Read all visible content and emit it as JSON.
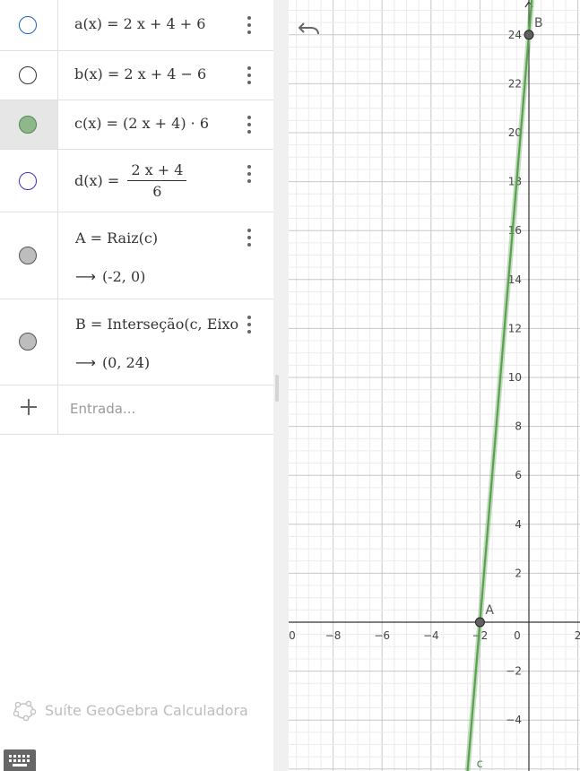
{
  "algebra": {
    "items": [
      {
        "id": "a",
        "expr": "a(x)  =  2 x + 4 + 6",
        "marble": {
          "fill": "#ffffff",
          "border": "#1565c0"
        }
      },
      {
        "id": "b",
        "expr": "b(x)  =  2 x + 4 − 6",
        "marble": {
          "fill": "#ffffff",
          "border": "#333333"
        }
      },
      {
        "id": "c",
        "expr": "c(x)  =  (2 x + 4) · 6",
        "marble": {
          "fill": "#8fb88a",
          "border": "#4e8a48"
        }
      },
      {
        "id": "d",
        "lhs": "d(x)  =",
        "numerator": "2 x + 4",
        "denominator": "6",
        "marble": {
          "fill": "#ffffff",
          "border": "#4a2bbf"
        }
      },
      {
        "id": "A",
        "expr": "A  =  Raiz(c)",
        "result": "(-2, 0)",
        "marble": {
          "fill": "#bdbdbd",
          "border": "#555555"
        }
      },
      {
        "id": "B",
        "expr": "B  =  Interseção(c, Eixo Y)",
        "result": "(0, 24)",
        "marble": {
          "fill": "#bdbdbd",
          "border": "#555555"
        }
      }
    ],
    "input_placeholder": "Entrada...",
    "app_name": "Suíte GeoGebra Calculadora"
  },
  "graphics": {
    "x_ticks": [
      "0",
      "−8",
      "−6",
      "−4",
      "−2",
      "0",
      "2"
    ],
    "y_ticks": [
      "24",
      "22",
      "20",
      "18",
      "16",
      "14",
      "12",
      "10",
      "8",
      "6",
      "4",
      "2",
      "−2",
      "−4"
    ],
    "function_label": "c",
    "points": [
      {
        "label": "A",
        "x": -2,
        "y": 0
      },
      {
        "label": "B",
        "x": 0,
        "y": 24
      }
    ],
    "line_color": "#5aa14f",
    "point_color": "#616161"
  },
  "icons": {
    "undo": "undo-icon",
    "menu": "more-vert-icon",
    "add": "plus-icon",
    "keyboard": "keyboard-icon",
    "logo": "geogebra-logo-icon"
  }
}
